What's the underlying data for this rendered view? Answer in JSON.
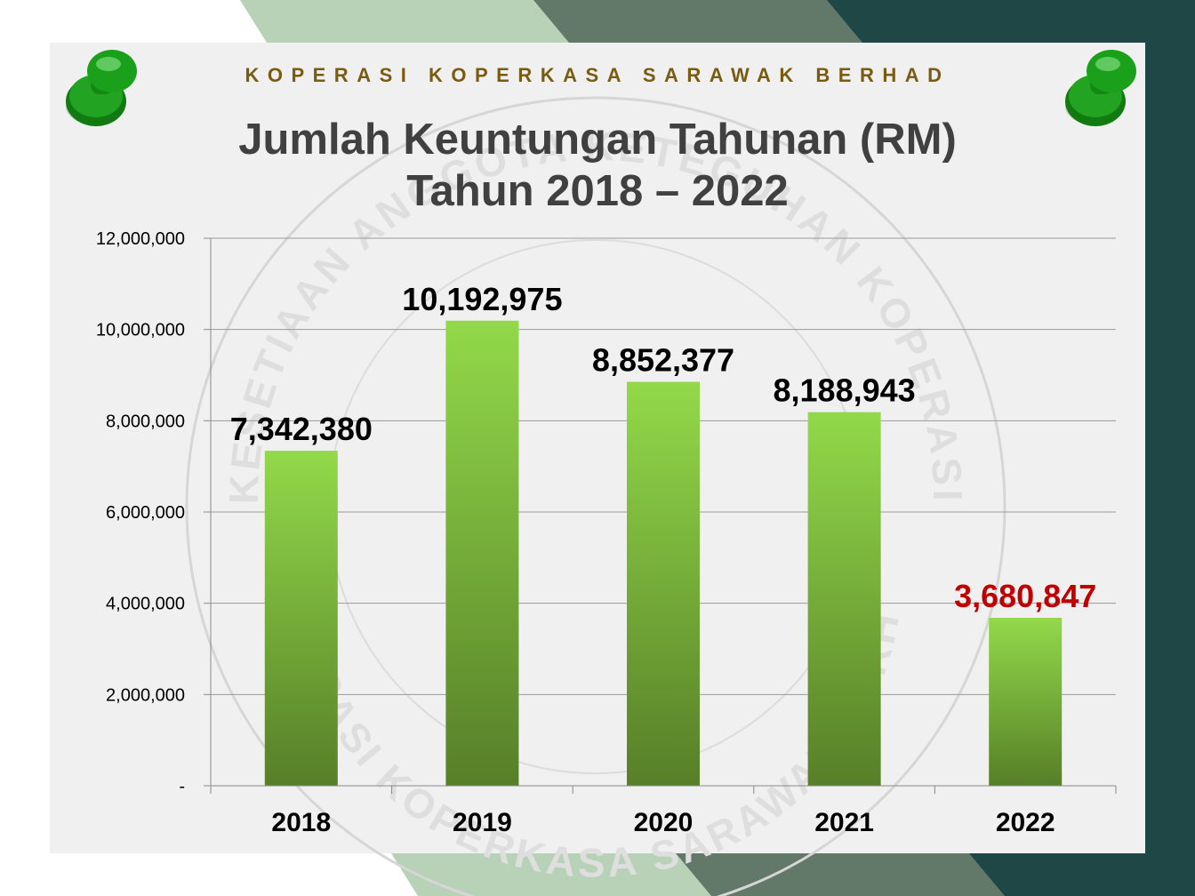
{
  "header": {
    "organization": "KOPERASI KOPERKASA SARAWAK BERHAD"
  },
  "chart_data": {
    "type": "bar",
    "title": "Jumlah Keuntungan Tahunan (RM)",
    "subtitle": "Tahun 2018 – 2022",
    "categories": [
      "2018",
      "2019",
      "2020",
      "2021",
      "2022"
    ],
    "values": [
      7342380,
      10192975,
      8852377,
      8188943,
      3680847
    ],
    "data_labels": [
      "7,342,380",
      "10,192,975",
      "8,852,377",
      "8,188,943",
      "3,680,847"
    ],
    "y_ticks": [
      0,
      2000000,
      4000000,
      6000000,
      8000000,
      10000000,
      12000000
    ],
    "y_tick_labels": [
      "-",
      "2,000,000",
      "4,000,000",
      "6,000,000",
      "8,000,000",
      "10,000,000",
      "12,000,000"
    ],
    "ylim": [
      0,
      12000000
    ],
    "xlabel": "",
    "ylabel": "",
    "grid": true,
    "legend": "none",
    "bar_color_top": "#92d94a",
    "bar_color_bottom": "#577f28",
    "label_color": "#000000",
    "highlight_label_color": "#c00000",
    "highlight_index": 4
  },
  "watermark": {
    "seal_text_top": "KESETIAAN ANGGOTA KETEGUHAN KOPERASI",
    "seal_text_bottom": "KOPERASI KOPERKASA SARAWAK BERHAD"
  },
  "decor": {
    "pin_color": "#1a9a1a",
    "band_light": "#b7d2b6",
    "band_mid": "#627868",
    "band_dark": "#1f4746"
  }
}
